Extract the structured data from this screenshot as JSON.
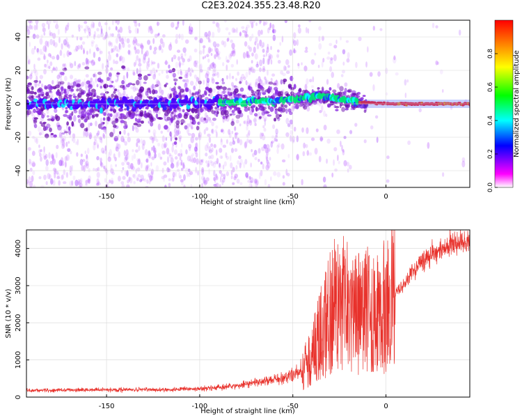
{
  "title": "C2E3.2024.355.23.48.R20",
  "chart_data": [
    {
      "type": "heatmap",
      "xlabel": "Height of straight line (km)",
      "ylabel": "Frequency (Hz)",
      "xlim": [
        -193,
        45
      ],
      "ylim": [
        -50,
        50
      ],
      "xticks": [
        -150,
        -100,
        -50,
        0
      ],
      "yticks": [
        -40,
        -20,
        0,
        20,
        40
      ],
      "colorbar": {
        "label": "Normalized spectral amplitude",
        "range": [
          0.0,
          1.0
        ],
        "ticks": [
          0.0,
          0.2,
          0.4,
          0.6,
          0.8
        ],
        "colors": [
          "#ffffff",
          "#ff00ff",
          "#0000ff",
          "#00ffff",
          "#00ff00",
          "#ffff00",
          "#ff0000"
        ]
      },
      "description_centerline": [
        [
          -193,
          0
        ],
        [
          -120,
          0
        ],
        [
          -80,
          1
        ],
        [
          -60,
          2
        ],
        [
          -45,
          3
        ],
        [
          -35,
          5
        ],
        [
          -25,
          3
        ],
        [
          -15,
          1
        ],
        [
          0,
          0
        ],
        [
          45,
          0
        ]
      ]
    },
    {
      "type": "line",
      "xlabel": "Height of straight line (km)",
      "ylabel": "SNR (10 * v/v)",
      "xlim": [
        -193,
        45
      ],
      "ylim": [
        0,
        4500
      ],
      "xticks": [
        -150,
        -100,
        -50,
        0
      ],
      "yticks": [
        0,
        1000,
        2000,
        3000,
        4000
      ],
      "series": [
        {
          "color": "#e8312b",
          "envelope": [
            [
              -193,
              180
            ],
            [
              -150,
              200
            ],
            [
              -120,
              200
            ],
            [
              -100,
              220
            ],
            [
              -80,
              300
            ],
            [
              -70,
              400
            ],
            [
              -55,
              500
            ],
            [
              -45,
              700
            ],
            [
              -40,
              1100
            ],
            [
              -35,
              1700
            ],
            [
              -30,
              2300
            ],
            [
              -25,
              2600
            ],
            [
              -20,
              2400
            ],
            [
              -15,
              2200
            ],
            [
              -12,
              2400
            ],
            [
              -8,
              2300
            ],
            [
              -5,
              2200
            ],
            [
              0,
              2500
            ],
            [
              5,
              2800
            ],
            [
              10,
              3100
            ],
            [
              15,
              3400
            ],
            [
              20,
              3700
            ],
            [
              25,
              3900
            ],
            [
              30,
              4000
            ],
            [
              35,
              4100
            ],
            [
              40,
              4150
            ],
            [
              45,
              4150
            ]
          ]
        }
      ]
    }
  ]
}
